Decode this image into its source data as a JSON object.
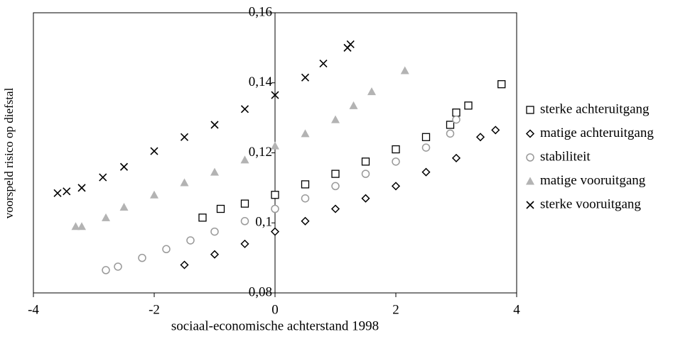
{
  "chart_data": {
    "type": "scatter",
    "x_label": "sociaal-economische achterstand 1998",
    "y_label": "voorspeld risico op diefstal",
    "xlim": [
      -4,
      4
    ],
    "xticks": [
      -4,
      -2,
      0,
      2,
      4
    ],
    "ylim": [
      0.08,
      0.16
    ],
    "yticks": [
      {
        "value": 0.08,
        "label": "0,08"
      },
      {
        "value": 0.1,
        "label": "0,1"
      },
      {
        "value": 0.12,
        "label": "0,12"
      },
      {
        "value": 0.14,
        "label": "0,14"
      },
      {
        "value": 0.16,
        "label": "0,16"
      }
    ],
    "legend": "right",
    "series": [
      {
        "name": "sterke achteruitgang",
        "marker": "square",
        "color": "#000000",
        "x": [
          -1.2,
          -0.9,
          -0.5,
          0,
          0.5,
          1,
          1.5,
          2,
          2.5,
          2.9,
          3,
          3.2,
          3.75
        ],
        "values": [
          0.1015,
          0.104,
          0.1055,
          0.108,
          0.111,
          0.114,
          0.1175,
          0.121,
          0.1245,
          0.128,
          0.1315,
          0.1335,
          0.1396
        ]
      },
      {
        "name": "matige achteruitgang",
        "marker": "diamond",
        "color": "#000000",
        "x": [
          -1.5,
          -1,
          -0.5,
          0,
          0.5,
          1,
          1.5,
          2,
          2.5,
          3,
          3.4,
          3.65
        ],
        "values": [
          0.088,
          0.091,
          0.094,
          0.0975,
          0.1005,
          0.104,
          0.107,
          0.1105,
          0.1145,
          0.1185,
          0.1245,
          0.1265
        ]
      },
      {
        "name": "stabiliteit",
        "marker": "circle",
        "color": "#999999",
        "x": [
          -2.8,
          -2.6,
          -2.2,
          -1.8,
          -1.4,
          -1,
          -0.5,
          0,
          0.5,
          1,
          1.5,
          2,
          2.5,
          2.9,
          3
        ],
        "values": [
          0.0865,
          0.0875,
          0.09,
          0.0925,
          0.095,
          0.0975,
          0.1005,
          0.104,
          0.107,
          0.1105,
          0.114,
          0.1175,
          0.1215,
          0.1255,
          0.1295
        ]
      },
      {
        "name": "matige vooruitgang",
        "marker": "triangle",
        "color": "#b3b3b3",
        "x": [
          -3.3,
          -3.2,
          -2.8,
          -2.5,
          -2,
          -1.5,
          -1,
          -0.5,
          0,
          0.5,
          1,
          1.3,
          1.6,
          2.15
        ],
        "values": [
          0.099,
          0.099,
          0.1015,
          0.1045,
          0.108,
          0.1115,
          0.1145,
          0.118,
          0.122,
          0.1255,
          0.1295,
          0.1335,
          0.1375,
          0.1435
        ]
      },
      {
        "name": "sterke vooruitgang",
        "marker": "cross",
        "color": "#000000",
        "x": [
          -3.6,
          -3.45,
          -3.2,
          -2.85,
          -2.5,
          -2,
          -1.5,
          -1,
          -0.5,
          0,
          0.5,
          0.8,
          1.2,
          1.25
        ],
        "values": [
          0.1085,
          0.109,
          0.11,
          0.113,
          0.116,
          0.1205,
          0.1245,
          0.128,
          0.1325,
          0.1365,
          0.1415,
          0.1455,
          0.15,
          0.151
        ]
      }
    ]
  }
}
